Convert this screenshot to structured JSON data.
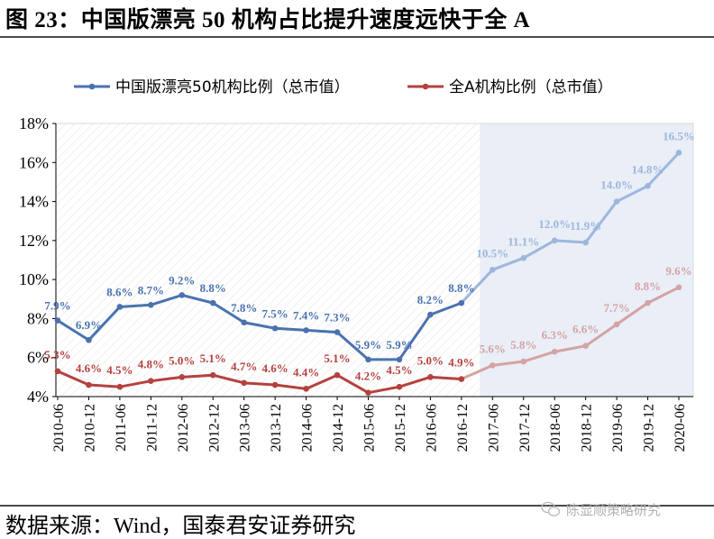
{
  "title": "图 23：中国版漂亮 50 机构占比提升速度远快于全 A",
  "source": "数据来源：Wind，国泰君安证券研究",
  "watermark": "陈显顺策略研究",
  "colors": {
    "series_blue": "#4a72b0",
    "series_blue_light": "#9db7dc",
    "series_red": "#b5413f",
    "series_red_light": "#d5a3a2",
    "forecast_bg": "#e9eef7"
  },
  "chart_data": {
    "type": "line",
    "x": [
      "2010-06",
      "2010-12",
      "2011-06",
      "2011-12",
      "2012-06",
      "2012-12",
      "2013-06",
      "2013-12",
      "2014-06",
      "2014-12",
      "2015-06",
      "2015-12",
      "2016-06",
      "2016-12",
      "2017-06",
      "2017-12",
      "2018-06",
      "2018-12",
      "2019-06",
      "2019-12",
      "2020-06"
    ],
    "ylim": [
      4,
      18
    ],
    "yticks": [
      "4%",
      "6%",
      "8%",
      "10%",
      "12%",
      "14%",
      "16%",
      "18%"
    ],
    "highlight_region": {
      "from": "2017-06",
      "to": "2020-06"
    },
    "legend_position": "top",
    "grid": false,
    "series": [
      {
        "name": "中国版漂亮50机构比例（总市值）",
        "values": [
          7.9,
          6.9,
          8.6,
          8.7,
          9.2,
          8.8,
          7.8,
          7.5,
          7.4,
          7.3,
          5.9,
          5.9,
          8.2,
          8.8,
          10.5,
          11.1,
          12.0,
          11.9,
          14.0,
          14.8,
          16.5
        ],
        "labels": [
          "7.9%",
          "6.9%",
          "8.6%",
          "8.7%",
          "9.2%",
          "8.8%",
          "7.8%",
          "7.5%",
          "7.4%",
          "7.3%",
          "5.9%",
          "5.9%",
          "8.2%",
          "8.8%",
          "10.5%",
          "11.1%",
          "12.0%",
          "11.9%",
          "14.0%",
          "14.8%",
          "16.5%"
        ]
      },
      {
        "name": "全A机构比例（总市值）",
        "values": [
          5.3,
          4.6,
          4.5,
          4.8,
          5.0,
          5.1,
          4.7,
          4.6,
          4.4,
          5.1,
          4.2,
          4.5,
          5.0,
          4.9,
          5.6,
          5.8,
          6.3,
          6.6,
          7.7,
          8.8,
          9.6
        ],
        "labels": [
          "5.3%",
          "4.6%",
          "4.5%",
          "4.8%",
          "5.0%",
          "5.1%",
          "4.7%",
          "4.6%",
          "4.4%",
          "5.1%",
          "4.2%",
          "4.5%",
          "5.0%",
          "4.9%",
          "5.6%",
          "5.8%",
          "6.3%",
          "6.6%",
          "7.7%",
          "8.8%",
          "9.6%"
        ]
      }
    ]
  }
}
